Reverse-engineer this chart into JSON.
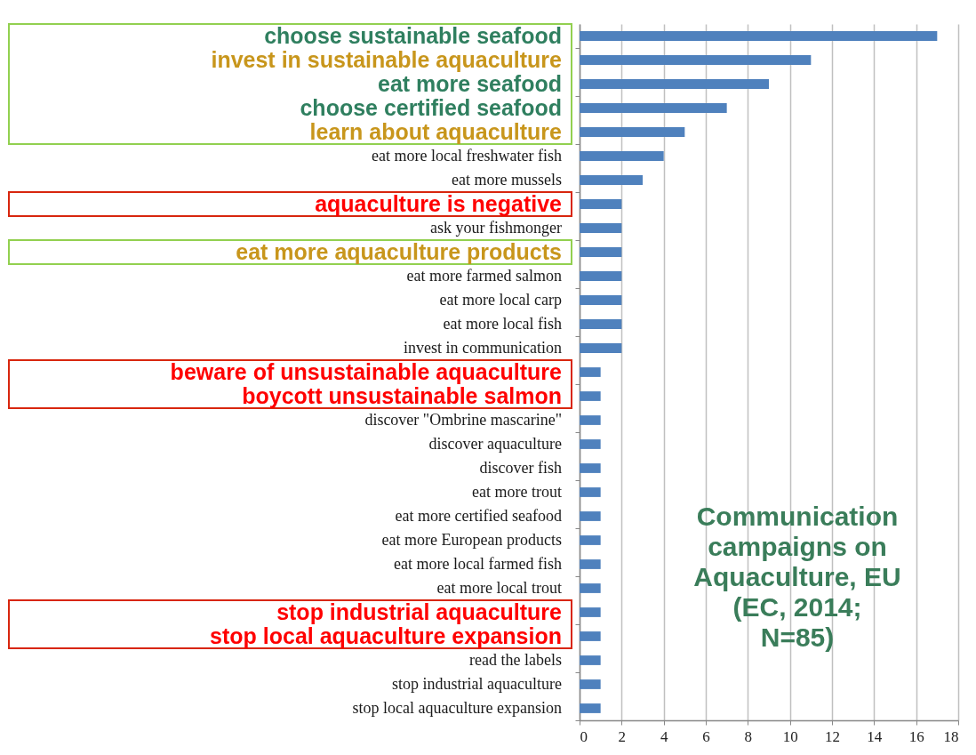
{
  "chart_data": {
    "type": "bar",
    "orientation": "horizontal",
    "title": "Communication campaigns on Aquaculture, EU (EC, 2014; N=85)",
    "categories": [
      "choose sustainable seafood",
      "invest in sustainable aquaculture",
      "eat more seafood",
      "choose certified seafood",
      "learn about aquaculture",
      "eat more local freshwater fish",
      "eat more mussels",
      "aquaculture is negative",
      "ask your fishmonger",
      "eat more aquaculture products",
      "eat more farmed salmon",
      "eat more local carp",
      "eat more local fish",
      "invest in communication",
      "beware of unsustainable aquaculture",
      "boycott unsustainable salmon",
      "discover \"Ombrine mascarine\"",
      "discover aquaculture",
      "discover fish",
      "eat more trout",
      "eat more certified seafood",
      "eat more European products",
      "eat more local farmed fish",
      "eat more local trout",
      "stop industrial aquaculture",
      "stop local aquaculture expansion",
      "read the labels",
      "stop industrial aquaculture",
      "stop local aquaculture expansion"
    ],
    "values": [
      17,
      11,
      9,
      7,
      5,
      4,
      3,
      2,
      2,
      2,
      2,
      2,
      2,
      2,
      1,
      1,
      1,
      1,
      1,
      1,
      1,
      1,
      1,
      1,
      1,
      1,
      1,
      1,
      1
    ],
    "color": "#4f81bd",
    "xlim": [
      0,
      18
    ],
    "xticks": [
      0,
      2,
      4,
      6,
      8,
      10,
      12,
      14,
      16,
      18
    ],
    "grid": "x"
  }
}
